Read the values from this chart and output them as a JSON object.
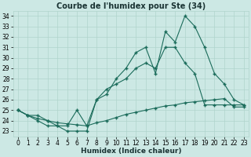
{
  "title": "Courbe de l'humidex pour Ste (34)",
  "xlabel": "Humidex (Indice chaleur)",
  "bg_color": "#cce8e4",
  "grid_color": "#b0d4cc",
  "line_color": "#1a6b5a",
  "xlim": [
    -0.5,
    23.5
  ],
  "ylim": [
    22.5,
    34.5
  ],
  "yticks": [
    23,
    24,
    25,
    26,
    27,
    28,
    29,
    30,
    31,
    32,
    33,
    34
  ],
  "xticks": [
    0,
    1,
    2,
    3,
    4,
    5,
    6,
    7,
    8,
    9,
    10,
    11,
    12,
    13,
    14,
    15,
    16,
    17,
    18,
    19,
    20,
    21,
    22,
    23
  ],
  "line1_x": [
    0,
    1,
    2,
    3,
    4,
    5,
    6,
    7,
    8,
    9,
    10,
    11,
    12,
    13,
    14,
    15,
    16,
    17,
    18,
    19,
    20,
    21,
    22,
    23
  ],
  "line1_y": [
    25.0,
    24.5,
    24.0,
    23.5,
    23.5,
    23.0,
    23.0,
    23.0,
    26.0,
    26.5,
    28.0,
    29.0,
    30.5,
    31.0,
    28.5,
    32.5,
    31.5,
    34.0,
    33.0,
    31.0,
    28.5,
    27.5,
    26.0,
    25.5
  ],
  "line2_x": [
    0,
    1,
    2,
    3,
    4,
    5,
    6,
    7,
    8,
    9,
    10,
    11,
    12,
    13,
    14,
    15,
    16,
    17,
    18,
    19,
    20,
    21,
    22,
    23
  ],
  "line2_y": [
    25.0,
    24.5,
    24.5,
    24.0,
    23.5,
    23.5,
    25.0,
    23.5,
    26.0,
    27.0,
    27.5,
    28.0,
    29.0,
    29.5,
    29.0,
    31.0,
    31.0,
    29.5,
    28.5,
    25.5,
    25.5,
    25.5,
    25.5,
    25.5
  ],
  "line3_x": [
    0,
    1,
    2,
    3,
    4,
    5,
    6,
    7,
    8,
    9,
    10,
    11,
    12,
    13,
    14,
    15,
    16,
    17,
    18,
    19,
    20,
    21,
    22,
    23
  ],
  "line3_y": [
    25.0,
    24.5,
    24.2,
    24.0,
    23.8,
    23.7,
    23.6,
    23.5,
    23.8,
    24.0,
    24.3,
    24.6,
    24.8,
    25.0,
    25.2,
    25.4,
    25.5,
    25.7,
    25.8,
    25.9,
    26.0,
    26.1,
    25.3,
    25.3
  ],
  "title_fontsize": 7,
  "tick_fontsize": 5.5,
  "label_fontsize": 6.5
}
